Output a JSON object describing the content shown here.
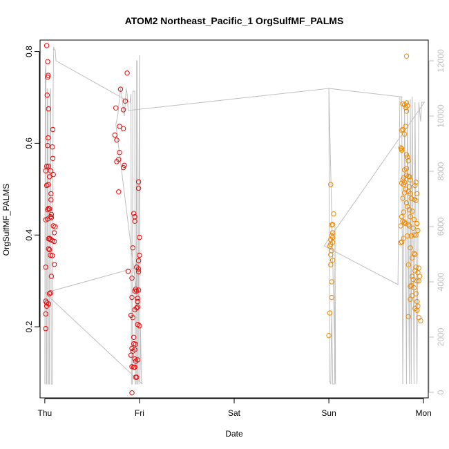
{
  "chart_data": {
    "type": "scatter",
    "title": "ATOM2 Northeast_Pacific_1 OrgSulfMF_PALMS",
    "xlabel": "Date",
    "ylabel": "OrgSulfMF_PALMS",
    "x_ticks": [
      {
        "label": "Thu",
        "day": 0
      },
      {
        "label": "Fri",
        "day": 1
      },
      {
        "label": "Sat",
        "day": 2
      },
      {
        "label": "Sun",
        "day": 3
      },
      {
        "label": "Mon",
        "day": 4
      }
    ],
    "xlim": [
      -0.05,
      4.05
    ],
    "ylim": [
      0.045,
      0.825
    ],
    "y_ticks": [
      0.2,
      0.4,
      0.6,
      0.8
    ],
    "y2lim": [
      -200,
      12750
    ],
    "y2_ticks": [
      0,
      2000,
      4000,
      6000,
      8000,
      10000,
      12000
    ],
    "grid": false,
    "colors": {
      "series1": "#ee0000",
      "series2": "#ee8800",
      "altitude": "#bebebe"
    },
    "series": [
      {
        "color": "#ee0000",
        "points": [
          [
            0.02,
            0.813
          ],
          [
            0.03,
            0.778
          ],
          [
            0.035,
            0.748
          ],
          [
            0.03,
            0.744
          ],
          [
            0.025,
            0.705
          ],
          [
            0.04,
            0.675
          ],
          [
            0.035,
            0.612
          ],
          [
            0.03,
            0.595
          ],
          [
            0.085,
            0.63
          ],
          [
            0.08,
            0.592
          ],
          [
            0.085,
            0.567
          ],
          [
            0.02,
            0.55
          ],
          [
            0.04,
            0.55
          ],
          [
            0.01,
            0.54
          ],
          [
            0.06,
            0.54
          ],
          [
            0.05,
            0.527
          ],
          [
            0.09,
            0.532
          ],
          [
            0.035,
            0.51
          ],
          [
            0.02,
            0.508
          ],
          [
            0.065,
            0.49
          ],
          [
            0.065,
            0.477
          ],
          [
            0.04,
            0.458
          ],
          [
            0.05,
            0.457
          ],
          [
            0.03,
            0.455
          ],
          [
            0.07,
            0.445
          ],
          [
            0.06,
            0.44
          ],
          [
            0.07,
            0.438
          ],
          [
            0.03,
            0.435
          ],
          [
            0.01,
            0.433
          ],
          [
            0.09,
            0.42
          ],
          [
            0.11,
            0.418
          ],
          [
            0.1,
            0.405
          ],
          [
            0.05,
            0.393
          ],
          [
            0.04,
            0.392
          ],
          [
            0.06,
            0.39
          ],
          [
            0.08,
            0.388
          ],
          [
            0.1,
            0.386
          ],
          [
            0.04,
            0.37
          ],
          [
            0.05,
            0.368
          ],
          [
            0.06,
            0.356
          ],
          [
            0.08,
            0.355
          ],
          [
            0.1,
            0.336
          ],
          [
            0.01,
            0.33
          ],
          [
            0.07,
            0.31
          ],
          [
            0.06,
            0.274
          ],
          [
            0.05,
            0.272
          ],
          [
            0.01,
            0.256
          ],
          [
            0.02,
            0.252
          ],
          [
            0.04,
            0.25
          ],
          [
            0.02,
            0.245
          ],
          [
            0.01,
            0.228
          ],
          [
            0.01,
            0.196
          ],
          [
            0.87,
            0.753
          ],
          [
            0.8,
            0.718
          ],
          [
            0.85,
            0.692
          ],
          [
            0.75,
            0.677
          ],
          [
            0.83,
            0.673
          ],
          [
            0.79,
            0.637
          ],
          [
            0.83,
            0.632
          ],
          [
            0.74,
            0.618
          ],
          [
            0.76,
            0.607
          ],
          [
            0.79,
            0.58
          ],
          [
            0.78,
            0.565
          ],
          [
            0.76,
            0.56
          ],
          [
            0.84,
            0.552
          ],
          [
            0.83,
            0.547
          ],
          [
            0.99,
            0.516
          ],
          [
            0.99,
            0.502
          ],
          [
            0.78,
            0.494
          ],
          [
            0.94,
            0.447
          ],
          [
            0.95,
            0.44
          ],
          [
            0.95,
            0.43
          ],
          [
            1.0,
            0.395
          ],
          [
            0.93,
            0.372
          ],
          [
            1.0,
            0.356
          ],
          [
            0.99,
            0.344
          ],
          [
            0.97,
            0.33
          ],
          [
            0.99,
            0.326
          ],
          [
            0.88,
            0.321
          ],
          [
            0.99,
            0.32
          ],
          [
            0.92,
            0.306
          ],
          [
            0.96,
            0.282
          ],
          [
            0.99,
            0.28
          ],
          [
            0.95,
            0.278
          ],
          [
            0.97,
            0.278
          ],
          [
            0.98,
            0.262
          ],
          [
            0.98,
            0.255
          ],
          [
            0.92,
            0.264
          ],
          [
            0.98,
            0.243
          ],
          [
            0.97,
            0.241
          ],
          [
            0.95,
            0.237
          ],
          [
            0.91,
            0.225
          ],
          [
            0.93,
            0.22
          ],
          [
            0.98,
            0.205
          ],
          [
            1.0,
            0.202
          ],
          [
            0.94,
            0.177
          ],
          [
            0.94,
            0.163
          ],
          [
            0.96,
            0.162
          ],
          [
            0.92,
            0.153
          ],
          [
            0.95,
            0.15
          ],
          [
            0.93,
            0.147
          ],
          [
            0.91,
            0.138
          ],
          [
            0.95,
            0.13
          ],
          [
            0.98,
            0.128
          ],
          [
            0.96,
            0.125
          ],
          [
            0.92,
            0.113
          ],
          [
            0.94,
            0.112
          ],
          [
            0.95,
            0.112
          ],
          [
            0.97,
            0.09
          ],
          [
            0.96,
            0.09
          ],
          [
            0.92,
            0.056
          ]
        ]
      },
      {
        "color": "#ee8800",
        "points": [
          [
            3.02,
            0.51
          ],
          [
            3.05,
            0.446
          ],
          [
            3.04,
            0.423
          ],
          [
            3.03,
            0.422
          ],
          [
            3.04,
            0.405
          ],
          [
            3.03,
            0.398
          ],
          [
            3.04,
            0.395
          ],
          [
            3.02,
            0.39
          ],
          [
            3.04,
            0.384
          ],
          [
            3.02,
            0.38
          ],
          [
            3.01,
            0.376
          ],
          [
            3.03,
            0.366
          ],
          [
            3.02,
            0.357
          ],
          [
            3.04,
            0.345
          ],
          [
            3.02,
            0.335
          ],
          [
            3.03,
            0.298
          ],
          [
            3.03,
            0.264
          ],
          [
            3.01,
            0.23
          ],
          [
            3.0,
            0.181
          ],
          [
            3.82,
            0.79
          ],
          [
            3.82,
            0.688
          ],
          [
            3.83,
            0.682
          ],
          [
            3.78,
            0.686
          ],
          [
            3.8,
            0.684
          ],
          [
            3.81,
            0.678
          ],
          [
            3.82,
            0.67
          ],
          [
            3.81,
            0.637
          ],
          [
            3.8,
            0.62
          ],
          [
            3.78,
            0.63
          ],
          [
            3.77,
            0.628
          ],
          [
            3.76,
            0.59
          ],
          [
            3.77,
            0.588
          ],
          [
            3.77,
            0.585
          ],
          [
            3.82,
            0.575
          ],
          [
            3.83,
            0.57
          ],
          [
            3.84,
            0.562
          ],
          [
            3.82,
            0.545
          ],
          [
            3.8,
            0.542
          ],
          [
            3.82,
            0.53
          ],
          [
            3.84,
            0.528
          ],
          [
            3.85,
            0.527
          ],
          [
            3.86,
            0.52
          ],
          [
            3.79,
            0.525
          ],
          [
            3.78,
            0.52
          ],
          [
            3.8,
            0.515
          ],
          [
            3.79,
            0.51
          ],
          [
            3.77,
            0.513
          ],
          [
            3.85,
            0.505
          ],
          [
            3.92,
            0.515
          ],
          [
            3.91,
            0.508
          ],
          [
            3.93,
            0.49
          ],
          [
            3.81,
            0.5
          ],
          [
            3.8,
            0.492
          ],
          [
            3.78,
            0.48
          ],
          [
            3.84,
            0.495
          ],
          [
            3.86,
            0.49
          ],
          [
            3.87,
            0.48
          ],
          [
            3.9,
            0.478
          ],
          [
            3.92,
            0.475
          ],
          [
            3.82,
            0.47
          ],
          [
            3.83,
            0.462
          ],
          [
            3.85,
            0.455
          ],
          [
            3.88,
            0.452
          ],
          [
            3.86,
            0.44
          ],
          [
            3.9,
            0.434
          ],
          [
            3.79,
            0.45
          ],
          [
            3.77,
            0.44
          ],
          [
            3.78,
            0.43
          ],
          [
            3.8,
            0.428
          ],
          [
            3.81,
            0.425
          ],
          [
            3.76,
            0.42
          ],
          [
            3.84,
            0.423
          ],
          [
            3.85,
            0.42
          ],
          [
            3.93,
            0.425
          ],
          [
            3.94,
            0.41
          ],
          [
            3.92,
            0.4
          ],
          [
            3.89,
            0.415
          ],
          [
            3.9,
            0.4
          ],
          [
            3.87,
            0.398
          ],
          [
            3.83,
            0.398
          ],
          [
            3.79,
            0.393
          ],
          [
            3.77,
            0.385
          ],
          [
            3.76,
            0.383
          ],
          [
            3.86,
            0.372
          ],
          [
            3.9,
            0.36
          ],
          [
            3.91,
            0.358
          ],
          [
            3.88,
            0.35
          ],
          [
            3.84,
            0.335
          ],
          [
            3.92,
            0.33
          ],
          [
            3.95,
            0.328
          ],
          [
            3.96,
            0.31
          ],
          [
            3.94,
            0.318
          ],
          [
            3.91,
            0.322
          ],
          [
            3.88,
            0.31
          ],
          [
            3.89,
            0.303
          ],
          [
            3.87,
            0.29
          ],
          [
            3.86,
            0.288
          ],
          [
            3.9,
            0.285
          ],
          [
            3.93,
            0.3
          ],
          [
            3.95,
            0.3
          ],
          [
            3.92,
            0.272
          ],
          [
            3.88,
            0.268
          ],
          [
            3.86,
            0.26
          ],
          [
            3.93,
            0.255
          ],
          [
            3.94,
            0.245
          ],
          [
            3.91,
            0.24
          ],
          [
            3.93,
            0.236
          ],
          [
            3.84,
            0.222
          ],
          [
            3.95,
            0.22
          ],
          [
            3.97,
            0.213
          ]
        ]
      }
    ],
    "altitude_track": [
      [
        0.0,
        300
      ],
      [
        0.005,
        11600
      ],
      [
        0.012,
        11900
      ],
      [
        0.016,
        300
      ],
      [
        0.022,
        300
      ],
      [
        0.028,
        11000
      ],
      [
        0.034,
        10000
      ],
      [
        0.04,
        300
      ],
      [
        0.048,
        300
      ],
      [
        0.055,
        10500
      ],
      [
        0.062,
        11000
      ],
      [
        0.068,
        300
      ],
      [
        0.08,
        300
      ],
      [
        0.088,
        10800
      ],
      [
        0.094,
        12500
      ],
      [
        0.1,
        12400
      ],
      [
        0.11,
        12400
      ],
      [
        0.118,
        12000
      ],
      [
        0.9,
        10500
      ],
      [
        0.91,
        10800
      ],
      [
        0.915,
        300
      ],
      [
        0.925,
        300
      ],
      [
        0.93,
        10900
      ],
      [
        0.94,
        10900
      ],
      [
        0.95,
        10900
      ],
      [
        0.955,
        300
      ],
      [
        0.965,
        300
      ],
      [
        0.97,
        12000
      ],
      [
        0.975,
        12000
      ],
      [
        0.98,
        300
      ],
      [
        0.985,
        300
      ],
      [
        1.0,
        12200
      ],
      [
        1.005,
        300
      ],
      [
        1.01,
        2500
      ],
      [
        1.02,
        400
      ],
      [
        1.03,
        300
      ],
      [
        0.0,
        3600
      ],
      [
        0.95,
        4500
      ],
      [
        0.97,
        4700
      ],
      [
        0.975,
        3500
      ],
      [
        0.75,
        9700
      ],
      [
        0.77,
        10000
      ],
      [
        0.8,
        11000
      ],
      [
        0.82,
        10500
      ],
      [
        0.84,
        10000
      ],
      [
        0.86,
        11000
      ],
      [
        0.87,
        10800
      ],
      [
        0.88,
        10200
      ],
      [
        3.0,
        11000
      ],
      [
        3.01,
        400
      ],
      [
        3.02,
        300
      ],
      [
        3.03,
        3000
      ],
      [
        3.04,
        300
      ],
      [
        3.06,
        300
      ],
      [
        3.065,
        6000
      ],
      [
        3.07,
        300
      ],
      [
        3.0,
        11000
      ],
      [
        3.75,
        10700
      ],
      [
        3.77,
        10700
      ],
      [
        3.78,
        300
      ],
      [
        3.79,
        5000
      ],
      [
        3.8,
        10500
      ],
      [
        3.82,
        300
      ],
      [
        3.83,
        10500
      ],
      [
        3.85,
        300
      ],
      [
        3.86,
        10600
      ],
      [
        3.87,
        300
      ],
      [
        3.88,
        10700
      ],
      [
        3.9,
        300
      ],
      [
        3.91,
        10500
      ],
      [
        3.93,
        300
      ],
      [
        3.95,
        10500
      ],
      [
        3.97,
        9800
      ],
      [
        3.98,
        10500
      ],
      [
        4.01,
        10500
      ],
      [
        2.95,
        5300
      ],
      [
        3.73,
        3900
      ],
      [
        3.75,
        10700
      ]
    ]
  }
}
